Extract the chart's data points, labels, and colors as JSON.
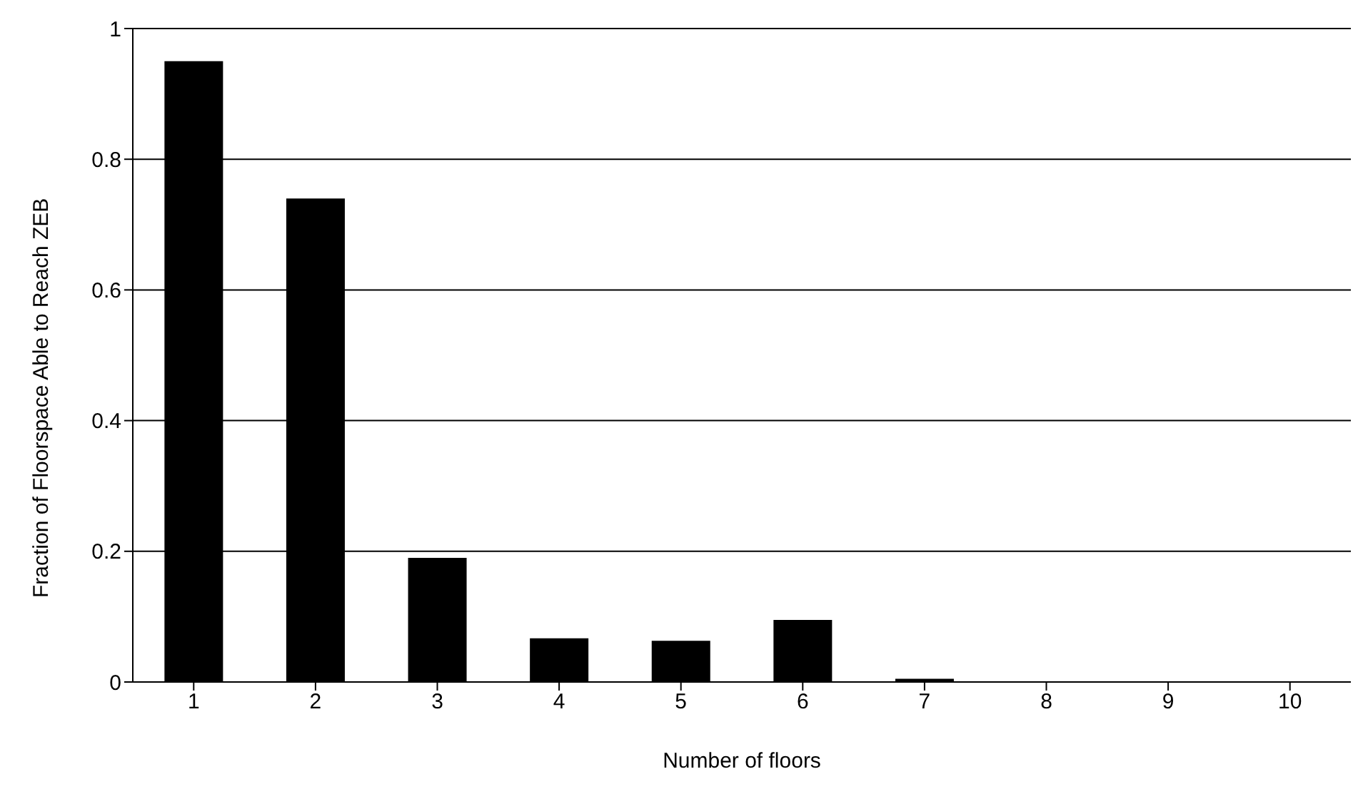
{
  "chart_data": {
    "type": "bar",
    "xlabel": "Number of floors",
    "ylabel": "Fraction of Floorspace Able to Reach ZEB",
    "categories": [
      "1",
      "2",
      "3",
      "4",
      "5",
      "6",
      "7",
      "8",
      "9",
      "10"
    ],
    "values": [
      0.95,
      0.74,
      0.19,
      0.067,
      0.063,
      0.095,
      0.005,
      0,
      0,
      0
    ],
    "color": "#000000",
    "ylim": [
      0,
      1
    ],
    "yticks": [
      0,
      0.2,
      0.4,
      0.6,
      0.8,
      1
    ],
    "grid": "y",
    "legend": false
  }
}
